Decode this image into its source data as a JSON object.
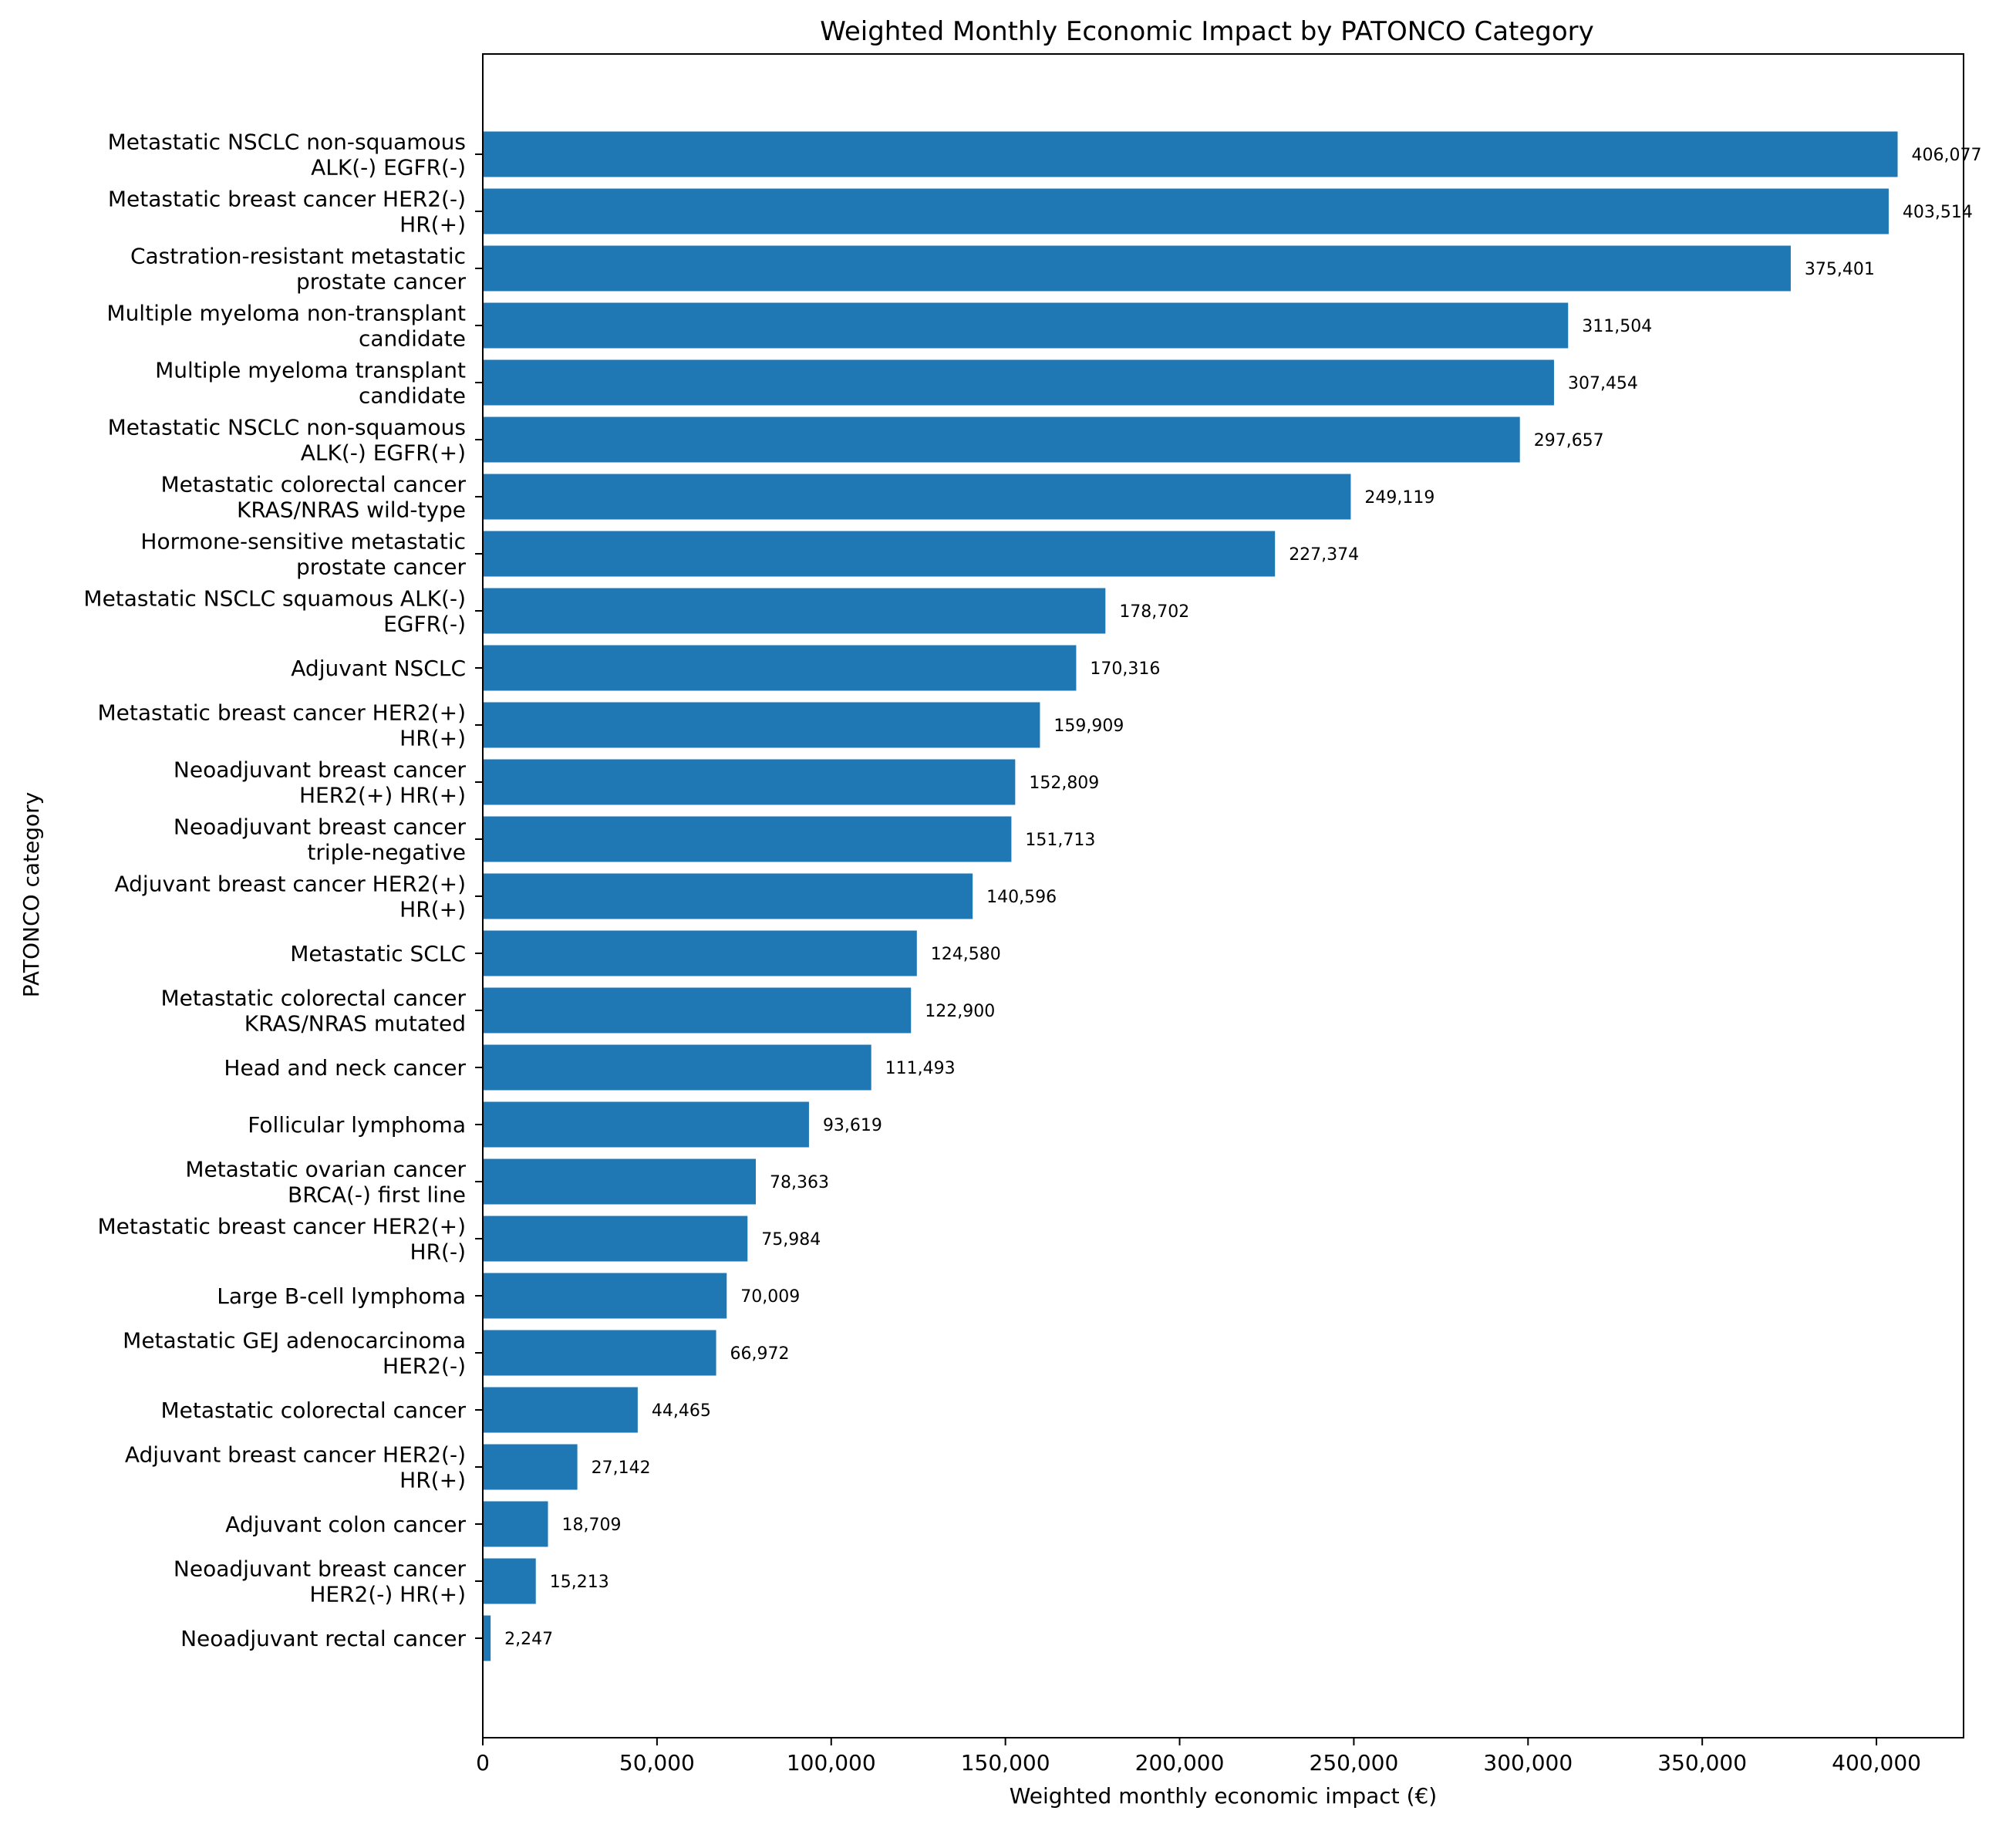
{
  "chart_data": {
    "type": "bar",
    "orientation": "horizontal",
    "title": "Weighted Monthly Economic Impact by PATONCO Category",
    "xlabel": "Weighted monthly economic impact (€)",
    "ylabel": "PATONCO category",
    "xlim": [
      0,
      425000
    ],
    "xticks": [
      0,
      50000,
      100000,
      150000,
      200000,
      250000,
      300000,
      350000,
      400000
    ],
    "xtick_labels": [
      "0",
      "50,000",
      "100,000",
      "150,000",
      "200,000",
      "250,000",
      "300,000",
      "350,000",
      "400,000"
    ],
    "grid": false,
    "bar_color": "#1f77b4",
    "categories": [
      [
        "Metastatic NSCLC non-squamous",
        "ALK(-) EGFR(-)"
      ],
      [
        "Metastatic breast cancer HER2(-)",
        "HR(+)"
      ],
      [
        "Castration-resistant metastatic",
        "prostate cancer"
      ],
      [
        "Multiple myeloma non-transplant",
        "candidate"
      ],
      [
        "Multiple myeloma transplant",
        "candidate"
      ],
      [
        "Metastatic NSCLC non-squamous",
        "ALK(-) EGFR(+)"
      ],
      [
        "Metastatic colorectal cancer",
        "KRAS/NRAS wild-type"
      ],
      [
        "Hormone-sensitive metastatic",
        "prostate cancer"
      ],
      [
        "Metastatic NSCLC squamous ALK(-)",
        "EGFR(-)"
      ],
      [
        "Adjuvant NSCLC"
      ],
      [
        "Metastatic breast cancer HER2(+)",
        "HR(+)"
      ],
      [
        "Neoadjuvant breast cancer",
        "HER2(+) HR(+)"
      ],
      [
        "Neoadjuvant breast cancer",
        "triple-negative"
      ],
      [
        "Adjuvant breast cancer HER2(+)",
        "HR(+)"
      ],
      [
        "Metastatic SCLC"
      ],
      [
        "Metastatic colorectal cancer",
        "KRAS/NRAS mutated"
      ],
      [
        "Head and neck cancer"
      ],
      [
        "Follicular lymphoma"
      ],
      [
        "Metastatic ovarian cancer",
        "BRCA(-) first line"
      ],
      [
        "Metastatic breast cancer HER2(+)",
        "HR(-)"
      ],
      [
        "Large B-cell lymphoma"
      ],
      [
        "Metastatic GEJ adenocarcinoma",
        "HER2(-)"
      ],
      [
        "Metastatic colorectal cancer"
      ],
      [
        "Adjuvant breast cancer HER2(-)",
        "HR(+)"
      ],
      [
        "Adjuvant colon cancer"
      ],
      [
        "Neoadjuvant breast cancer",
        "HER2(-) HR(+)"
      ],
      [
        "Neoadjuvant rectal cancer"
      ]
    ],
    "values": [
      406077,
      403514,
      375401,
      311504,
      307454,
      297657,
      249119,
      227374,
      178702,
      170316,
      159909,
      152809,
      151713,
      140596,
      124580,
      122900,
      111493,
      93619,
      78363,
      75984,
      70009,
      66972,
      44465,
      27142,
      18709,
      15213,
      2247
    ],
    "value_labels": [
      "406,077",
      "403,514",
      "375,401",
      "311,504",
      "307,454",
      "297,657",
      "249,119",
      "227,374",
      "178,702",
      "170,316",
      "159,909",
      "152,809",
      "151,713",
      "140,596",
      "124,580",
      "122,900",
      "111,493",
      "93,619",
      "78,363",
      "75,984",
      "70,009",
      "66,972",
      "44,465",
      "27,142",
      "18,709",
      "15,213",
      "2,247"
    ]
  }
}
